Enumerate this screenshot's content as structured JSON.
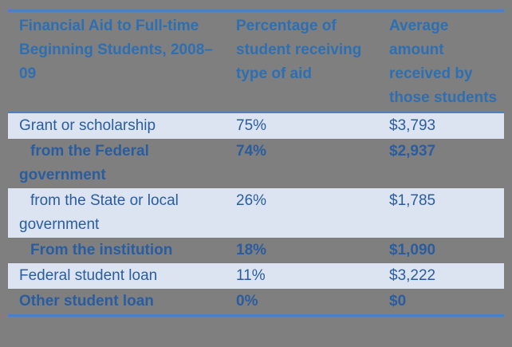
{
  "colors": {
    "page_bg": "#7f7f7f",
    "band": "#dbe4f0",
    "border": "#4a80c4",
    "header_text": "#2e6fb2",
    "body_text": "#2a5da0"
  },
  "table": {
    "header": {
      "col1": "Financial Aid to Full-time Beginning Students, 2008–09",
      "col2": "Percentage of student receiving type of aid",
      "col3": "Average amount received by those students"
    },
    "rows": [
      {
        "label": "Grant or scholarship",
        "pct": "75%",
        "amount": "$3,793",
        "indent": false,
        "bold": false,
        "banded": true
      },
      {
        "label": "from the Federal government",
        "pct": "74%",
        "amount": "$2,937",
        "indent": true,
        "bold": true,
        "banded": false
      },
      {
        "label": "from the State or local government",
        "pct": "26%",
        "amount": "$1,785",
        "indent": true,
        "bold": false,
        "banded": true
      },
      {
        "label": "From the institution",
        "pct": "18%",
        "amount": "$1,090",
        "indent": true,
        "bold": true,
        "banded": false
      },
      {
        "label": "Federal student loan",
        "pct": "11%",
        "amount": "$3,222",
        "indent": false,
        "bold": false,
        "banded": true
      },
      {
        "label": "Other student loan",
        "pct": "0%",
        "amount": "$0",
        "indent": false,
        "bold": true,
        "banded": false
      }
    ]
  },
  "chart_data": {
    "type": "table",
    "title": "Financial Aid to Full-time Beginning Students, 2008–09",
    "columns": [
      "Financial Aid to Full-time Beginning Students, 2008–09",
      "Percentage of student receiving type of aid",
      "Average amount received by those students"
    ],
    "rows": [
      [
        "Grant or scholarship",
        "75%",
        "$3,793"
      ],
      [
        "from the Federal government",
        "74%",
        "$2,937"
      ],
      [
        "from the State or local government",
        "26%",
        "$1,785"
      ],
      [
        "From the institution",
        "18%",
        "$1,090"
      ],
      [
        "Federal student loan",
        "11%",
        "$3,222"
      ],
      [
        "Other student loan",
        "0%",
        "$0"
      ]
    ]
  }
}
